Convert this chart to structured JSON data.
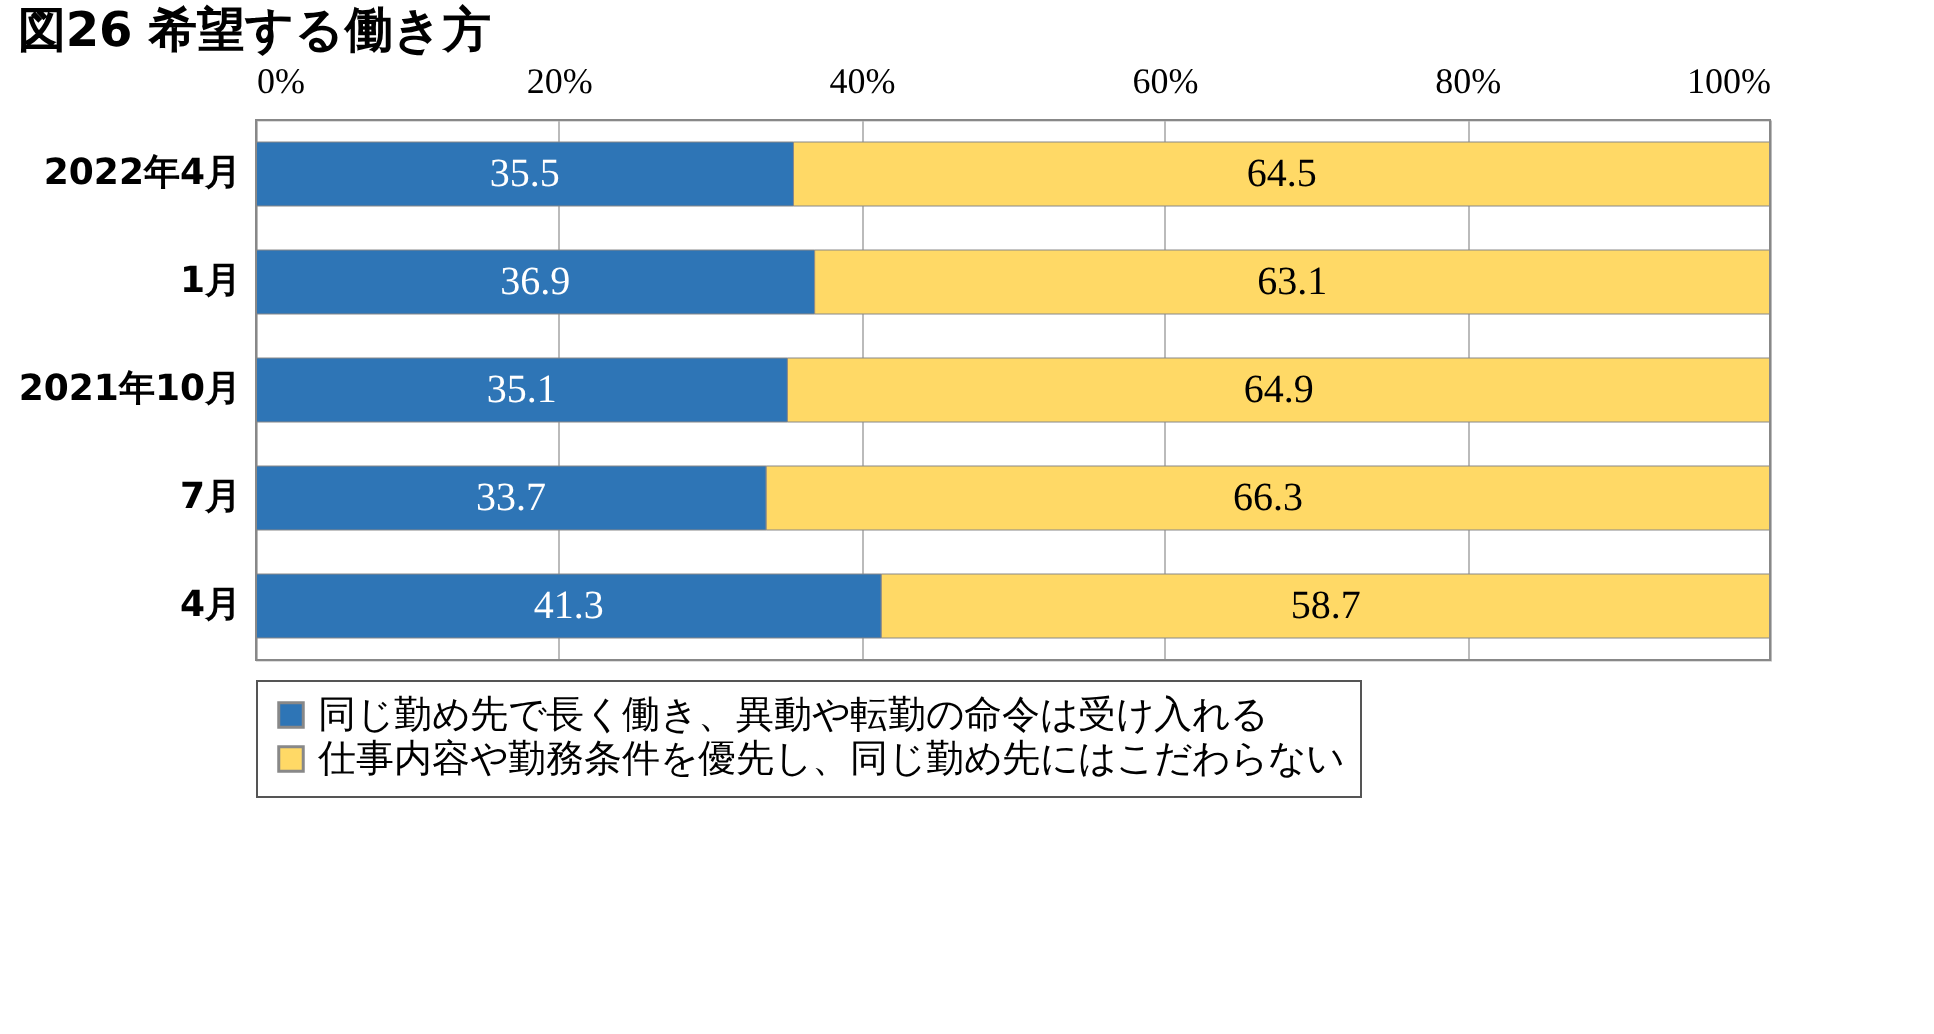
{
  "chart_data": {
    "type": "bar",
    "title": "図26 希望する働き方",
    "orientation": "horizontal",
    "stacked": true,
    "categories": [
      "2022年4月",
      "1月",
      "2021年10月",
      "7月",
      "4月"
    ],
    "series": [
      {
        "name": "同じ勤め先で長く働き、異動や転勤の命令は受け入れる",
        "color": "#2e75b6",
        "values": [
          35.5,
          36.9,
          35.1,
          33.7,
          41.3
        ]
      },
      {
        "name": "仕事内容や勤務条件を優先し、同じ勤め先にはこだわらない",
        "color": "#ffd966",
        "values": [
          64.5,
          63.1,
          64.9,
          66.3,
          58.7
        ]
      }
    ],
    "xlim": [
      0,
      100
    ],
    "xticks": [
      {
        "value": 0,
        "label": "0%"
      },
      {
        "value": 20,
        "label": "20%"
      },
      {
        "value": 40,
        "label": "40%"
      },
      {
        "value": 60,
        "label": "60%"
      },
      {
        "value": 80,
        "label": "80%"
      },
      {
        "value": 100,
        "label": "100%"
      }
    ],
    "grid": "x",
    "legend": "bottom",
    "data_labels": true
  }
}
